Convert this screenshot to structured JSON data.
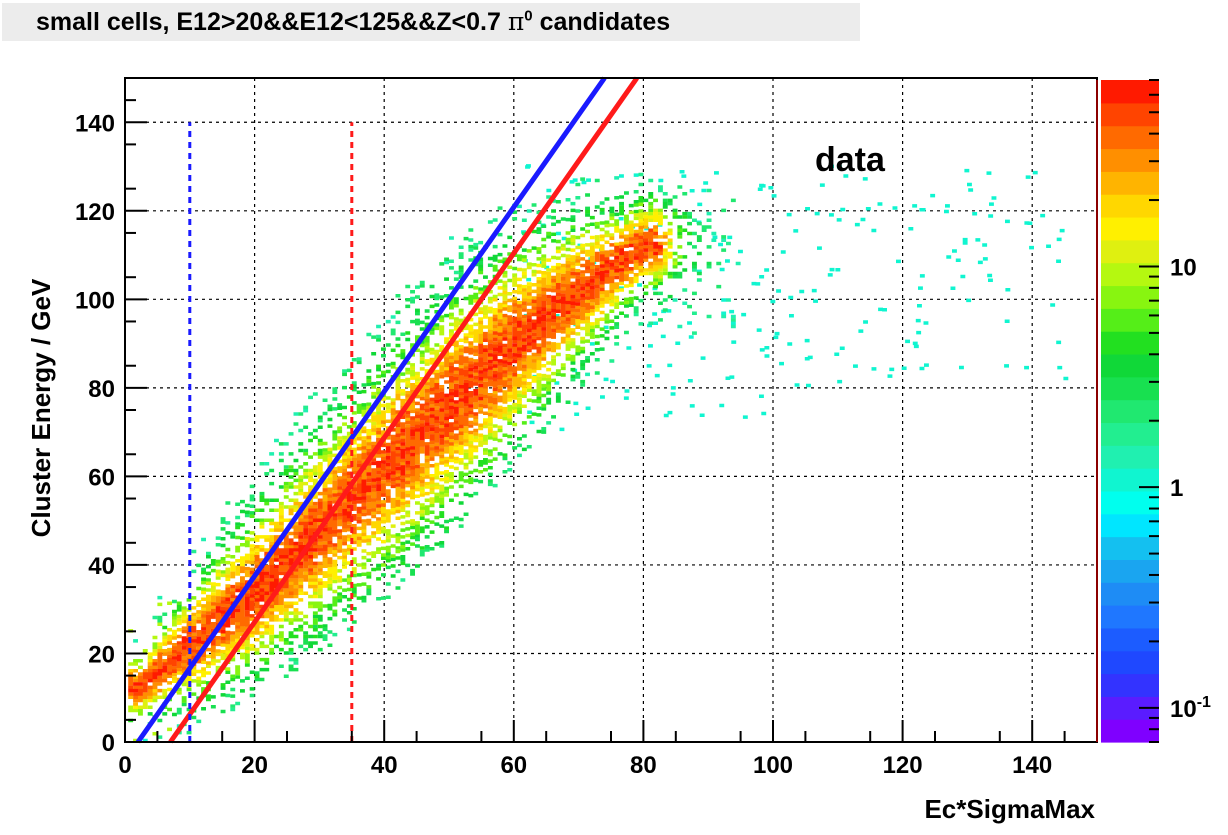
{
  "title": {
    "prefix": "small cells, E12>20&&E12<125&&Z<0.7 ",
    "symbol": "π",
    "superscript": "0",
    "suffix": " candidates"
  },
  "chart_data": {
    "type": "heatmap",
    "title": "small cells, E12>20&&E12<125&&Z<0.7 π0 candidates",
    "xlabel": "Ec*SigmaMax",
    "ylabel": "Cluster Energy / GeV",
    "xlim": [
      0,
      150
    ],
    "ylim": [
      0,
      150
    ],
    "x_ticks": [
      0,
      20,
      40,
      60,
      80,
      100,
      120,
      140
    ],
    "y_ticks": [
      0,
      20,
      40,
      60,
      80,
      100,
      120,
      140
    ],
    "grid": true,
    "annotation": "data",
    "colorbar": {
      "scale": "log",
      "ticks": [
        {
          "value": 0.1,
          "label": "10-1"
        },
        {
          "value": 1,
          "label": "1"
        },
        {
          "value": 10,
          "label": "10"
        }
      ],
      "range": [
        0.07,
        70
      ],
      "colors": [
        "#7f00ff",
        "#5a1cff",
        "#3333ff",
        "#1f48ff",
        "#1c5cff",
        "#1f77ff",
        "#1e8cf5",
        "#1aa5f0",
        "#14c0f0",
        "#00e6ff",
        "#00ffee",
        "#10f5d0",
        "#20f0b0",
        "#22ee90",
        "#20e870",
        "#18e050",
        "#10d838",
        "#22e020",
        "#55ee18",
        "#88f510",
        "#b5f810",
        "#dff010",
        "#fff000",
        "#ffd700",
        "#ffb400",
        "#ff8f00",
        "#ff6a00",
        "#ff4400",
        "#ff1a00"
      ]
    },
    "lines": [
      {
        "name": "blue diagonal",
        "color": "#1a1aff",
        "style": "solid",
        "x": [
          2.0,
          74.0
        ],
        "y": [
          0,
          150
        ]
      },
      {
        "name": "red diagonal",
        "color": "#ff1a1a",
        "style": "solid",
        "x": [
          7.0,
          79.0
        ],
        "y": [
          0,
          150
        ]
      },
      {
        "name": "blue vertical cut",
        "color": "#1a1aff",
        "style": "dashed",
        "x": [
          10,
          10
        ],
        "y": [
          0,
          140
        ]
      },
      {
        "name": "red vertical cut",
        "color": "#ff1a1a",
        "style": "dashed",
        "x": [
          35,
          35
        ],
        "y": [
          0,
          140
        ]
      }
    ],
    "density_band": {
      "description_points_x": [
        2,
        10,
        20,
        30,
        40,
        50,
        60,
        70,
        80
      ],
      "upper_y": [
        20,
        38,
        58,
        75,
        92,
        108,
        118,
        122,
        122
      ],
      "lower_y": [
        4,
        8,
        16,
        26,
        38,
        52,
        68,
        86,
        98
      ],
      "peak_y": [
        12,
        22,
        34,
        48,
        62,
        76,
        90,
        102,
        112
      ]
    }
  }
}
